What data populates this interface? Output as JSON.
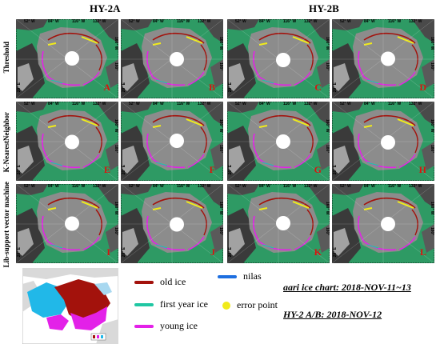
{
  "headers": {
    "left": "HY-2A",
    "right": "HY-2B"
  },
  "row_labels": [
    "Threshold",
    "K-NearestNeighbor",
    "Lib-support vector machine"
  ],
  "lon_labels": [
    "52° W",
    "84° W",
    "116° W",
    "132° W"
  ],
  "lat_labels": [
    "160° W",
    "180°"
  ],
  "side_labels": [
    "20° E"
  ],
  "panels": [
    "A",
    "B",
    "C",
    "D",
    "E",
    "F",
    "G",
    "H",
    "I",
    "J",
    "K",
    "L"
  ],
  "legend": {
    "items": [
      {
        "label": "old ice",
        "color": "#a3120c",
        "kind": "line"
      },
      {
        "label": "first year ice",
        "color": "#20c7a3",
        "kind": "line"
      },
      {
        "label": "young ice",
        "color": "#e321e8",
        "kind": "line"
      },
      {
        "label": "nilas",
        "color": "#1e6fe0",
        "kind": "line"
      },
      {
        "label": "error point",
        "color": "#f0ea1a",
        "kind": "dot"
      }
    ]
  },
  "notes": {
    "chart": "aari ice chart: 2018-NOV-11~13",
    "obs": "HY-2 A/B: 2018-NOV-12"
  },
  "colors": {
    "ocean": "#2e9a64",
    "ice": "#8c8c8c",
    "land": "#3a3a3a",
    "label_red": "#d8140f"
  }
}
